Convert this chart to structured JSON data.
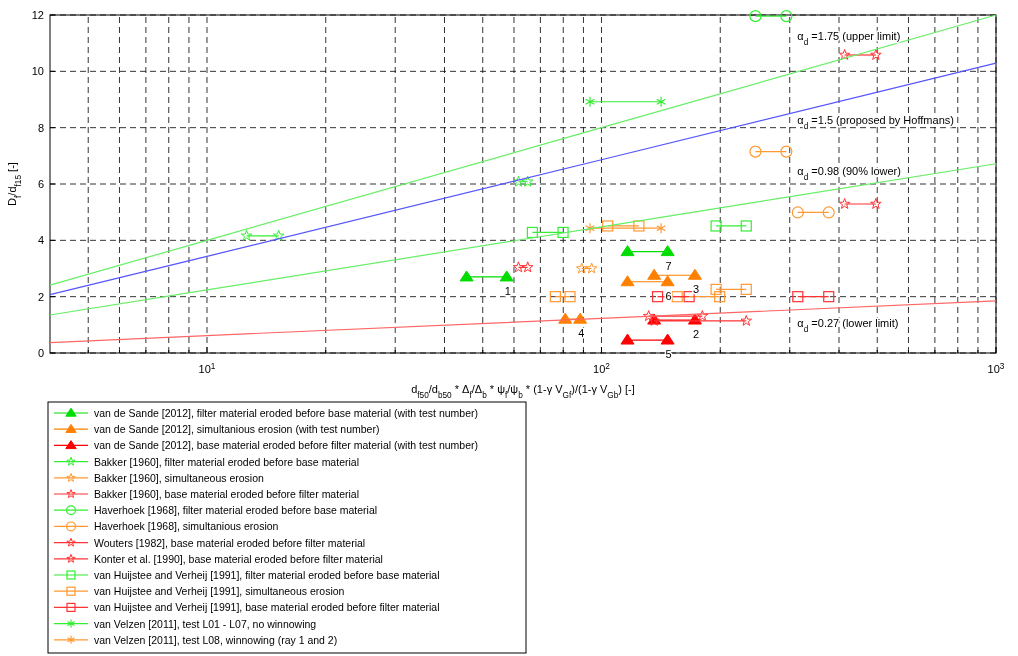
{
  "chart_data": {
    "type": "line",
    "xlabel": "d$_{f50}$/d$_{b50}$ * Δ$_{f}$/Δ$_{b}$ * ψ$_{f}$/ψ$_{b}$ * (1-γ V$_{Gf}$)/(1-γ V$_{Gb}$) [-]",
    "ylabel": "D$_{f}$/d$_{f15}$ [-]",
    "log": "x",
    "grid": true,
    "legend": "bottom",
    "line_style": "solid",
    "xlim": [
      4,
      1000
    ],
    "ylim": [
      0,
      12
    ],
    "xticks": [
      {
        "value": 5,
        "label": null
      },
      {
        "value": 6,
        "label": null
      },
      {
        "value": 7,
        "label": null
      },
      {
        "value": 8,
        "label": null
      },
      {
        "value": 9,
        "label": null
      },
      {
        "value": 10,
        "label": "10$^{1}$"
      },
      {
        "value": 20,
        "label": null
      },
      {
        "value": 30,
        "label": null
      },
      {
        "value": 40,
        "label": null
      },
      {
        "value": 50,
        "label": null
      },
      {
        "value": 60,
        "label": null
      },
      {
        "value": 70,
        "label": null
      },
      {
        "value": 80,
        "label": null
      },
      {
        "value": 90,
        "label": null
      },
      {
        "value": 100,
        "label": "10$^{2}$"
      },
      {
        "value": 200,
        "label": null
      },
      {
        "value": 300,
        "label": null
      },
      {
        "value": 400,
        "label": null
      },
      {
        "value": 500,
        "label": null
      },
      {
        "value": 600,
        "label": null
      },
      {
        "value": 700,
        "label": null
      },
      {
        "value": 800,
        "label": null
      },
      {
        "value": 900,
        "label": null
      },
      {
        "value": 1000,
        "label": "10$^{3}$"
      }
    ],
    "yticks": [
      0,
      2,
      4,
      6,
      8,
      10,
      12
    ],
    "series": [
      {
        "name": "van de Sande [2012], filter material eroded before base material (with test number)",
        "color": "#00dd00",
        "marker": "triangle",
        "x": [
          45.5,
          57.5,
          null,
          116.4,
          147.1
        ],
        "values": [
          2.7,
          2.7,
          null,
          3.6,
          3.6
        ]
      },
      {
        "name": "van de Sande [2012], simultanious erosion (with test number)",
        "color": "#ff8000",
        "marker": "triangle",
        "x": [
          116.4,
          147.1,
          null,
          136,
          172.5,
          null,
          80.9,
          88.3
        ],
        "values": [
          2.53,
          2.53,
          null,
          2.76,
          2.76,
          null,
          1.2,
          1.2
        ]
      },
      {
        "name": "van de Sande [2012], base material eroded before filter material (with test number)",
        "color": "#ff0000",
        "marker": "triangle",
        "x": [
          136,
          172.5,
          null,
          116.4,
          147.1
        ],
        "values": [
          1.17,
          1.17,
          null,
          0.46,
          0.46
        ]
      },
      {
        "name": "Bakker [1960], filter material eroded before base material",
        "color": "#33ee33",
        "marker": "star",
        "x": [
          12.6,
          15.2,
          null,
          61.6,
          65
        ],
        "values": [
          4.16,
          4.16,
          null,
          6.08,
          6.08
        ]
      },
      {
        "name": "Bakker [1960], simultaneous erosion",
        "color": "#ff9933",
        "marker": "star",
        "x": [
          89.1,
          94.4
        ],
        "values": [
          3.0,
          3.0
        ]
      },
      {
        "name": "Bakker [1960], base material eroded before filter material",
        "color": "#ff3333",
        "marker": "star",
        "x": [
          61.6,
          65
        ],
        "values": [
          3.04,
          3.04
        ]
      },
      {
        "name": "Haverhoek [1968], filter material eroded before base material",
        "color": "#33ee33",
        "marker": "circle",
        "x": [
          245.6,
          294.2
        ],
        "values": [
          11.96,
          11.96
        ]
      },
      {
        "name": "Haverhoek [1968], simultanious erosion",
        "color": "#ff9933",
        "marker": "circle",
        "x": [
          245.6,
          294.2,
          null,
          314.5,
          376.7
        ],
        "values": [
          7.15,
          7.15,
          null,
          4.99,
          4.99
        ]
      },
      {
        "name": "Wouters [1982], base material eroded before filter material",
        "color": "#ff3333",
        "marker": "star",
        "x": [
          413.3,
          496
        ],
        "values": [
          10.58,
          10.58
        ]
      },
      {
        "name": "Konter et al. [1990], base material eroded before filter material",
        "color": "#ff3333",
        "marker": "star",
        "x": [
          413.3,
          496,
          null,
          131.7,
          180.2,
          null,
          136,
          232.8
        ],
        "values": [
          5.29,
          5.29,
          null,
          1.31,
          1.31,
          null,
          1.14,
          1.14
        ]
      },
      {
        "name": "van Huijstee and Verheij [1991], filter material eroded before base material",
        "color": "#33ee33",
        "marker": "square",
        "x": [
          66.8,
          79.9,
          null,
          195.2,
          232.8
        ],
        "values": [
          4.28,
          4.28,
          null,
          4.51,
          4.51
        ]
      },
      {
        "name": "van Huijstee and Verheij [1991], simultaneous erosion",
        "color": "#ff9933",
        "marker": "square",
        "x": [
          103.7,
          124.4,
          null,
          76.4,
          83.2,
          null,
          155.6,
          199.3,
          null,
          195.2,
          232.8
        ],
        "values": [
          4.51,
          4.51,
          null,
          2.0,
          2.0,
          null,
          2.0,
          2.0,
          null,
          2.26,
          2.26
        ]
      },
      {
        "name": "van Huijstee and Verheij [1991], base material eroded before filter material",
        "color": "#ff3333",
        "marker": "square",
        "x": [
          138.7,
          166.8,
          null,
          314.5,
          376.7
        ],
        "values": [
          2.0,
          2.0,
          null,
          2.0,
          2.0
        ]
      },
      {
        "name": "van Velzen [2011], test L01 - L07, no winnowing",
        "color": "#33ee33",
        "marker": "cross",
        "x": [
          93.5,
          141.6
        ],
        "values": [
          8.92,
          8.92
        ]
      },
      {
        "name": "van Velzen [2011], test L08, winnowing (ray 1 and 2)",
        "color": "#ff9933",
        "marker": "cross",
        "x": [
          93.5,
          141.6
        ],
        "values": [
          4.43,
          4.43
        ]
      },
      {
        "color": "#66ee66",
        "marker": "none",
        "x": [
          4,
          10,
          100,
          1000
        ],
        "values": [
          2.41,
          4,
          8,
          12
        ]
      },
      {
        "color": "#5555ff",
        "marker": "none",
        "x": [
          4,
          10,
          100,
          1000
        ],
        "values": [
          2.07,
          3.43,
          6.86,
          10.29
        ]
      },
      {
        "color": "#66ee66",
        "marker": "none",
        "x": [
          4,
          10,
          100,
          1000
        ],
        "values": [
          1.35,
          2.24,
          4.48,
          6.72
        ]
      },
      {
        "color": "#ff6666",
        "marker": "none",
        "x": [
          4,
          10,
          100,
          1000
        ],
        "values": [
          0.37,
          0.62,
          1.23,
          1.85
        ]
      }
    ],
    "annotations": [
      "α$_{d}$ =1.75 (upper limit)",
      "α$_{d}$ =1.5 (proposed by Hoffmans)",
      "α$_{d}$ =0.98 (90% lower)",
      "α$_{d}$ =0.27 (lower limit)",
      {
        "text": "1",
        "x": 57.5,
        "y": 2.7
      },
      {
        "text": "2",
        "x": 172.5,
        "y": 1.17
      },
      {
        "text": "3",
        "x": 172.5,
        "y": 2.76
      },
      {
        "text": "4",
        "x": 88.3,
        "y": 1.2
      },
      {
        "text": "5",
        "x": 147.1,
        "y": 0.46
      },
      {
        "text": "6",
        "x": 147.1,
        "y": 2.53
      },
      {
        "text": "7",
        "x": 147.1,
        "y": 3.6
      }
    ]
  }
}
